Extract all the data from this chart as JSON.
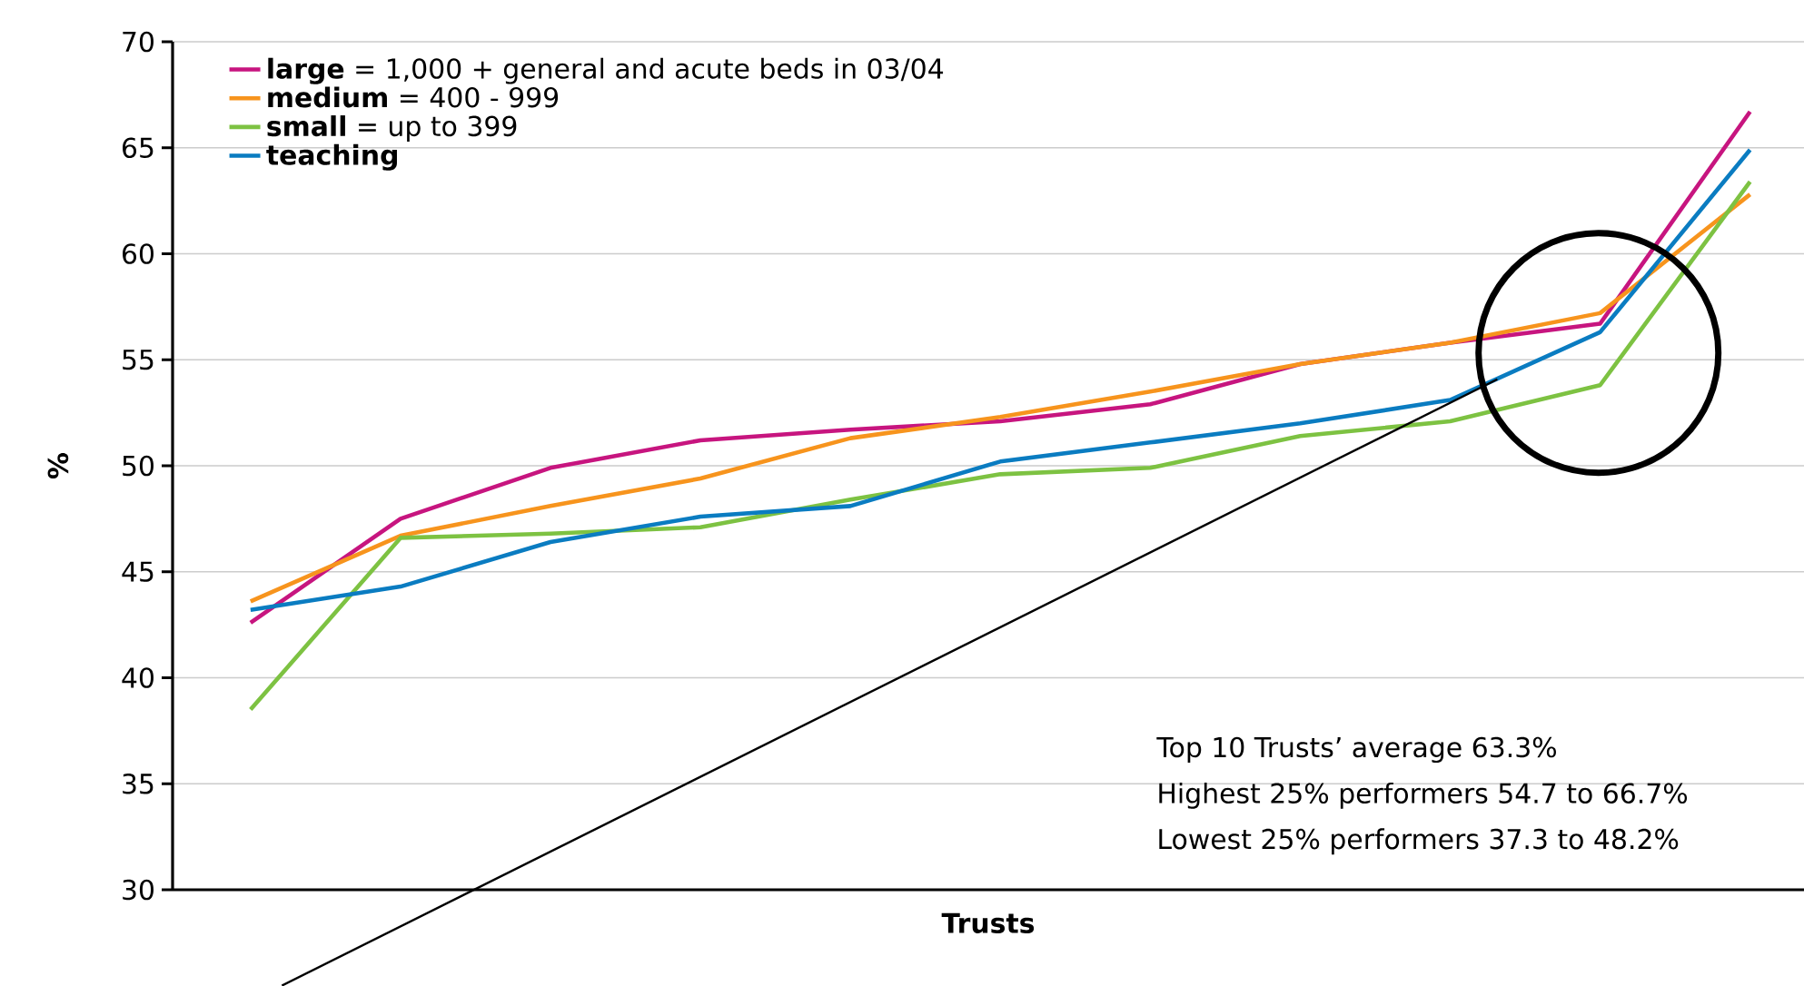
{
  "chart_data": {
    "type": "line",
    "xlabel": "Trusts",
    "ylabel": "%",
    "categories": [
      null,
      null,
      null,
      null,
      null,
      null,
      null,
      null,
      null,
      null,
      null
    ],
    "series": [
      {
        "name": "**large** = 1,000 + general and acute beds in 03/04",
        "color": "#c7157f",
        "values": [
          42.6,
          47.5,
          49.9,
          51.2,
          51.7,
          52.1,
          52.9,
          54.8,
          55.8,
          56.7,
          66.7
        ]
      },
      {
        "name": "**medium** = 400 - 999",
        "color": "#f7941d",
        "values": [
          43.6,
          46.7,
          48.1,
          49.4,
          51.3,
          52.3,
          53.5,
          54.8,
          55.8,
          57.2,
          62.8
        ]
      },
      {
        "name": "**small** = up to 399",
        "color": "#7dc242",
        "values": [
          38.5,
          46.6,
          46.8,
          47.1,
          48.4,
          49.6,
          49.9,
          51.4,
          52.1,
          53.8,
          63.4
        ]
      },
      {
        "name": "**teaching**",
        "color": "#0a7cc1",
        "values": [
          43.2,
          44.3,
          46.4,
          47.6,
          48.1,
          50.2,
          51.1,
          52.0,
          53.1,
          56.3,
          64.9
        ]
      }
    ],
    "ylim": [
      30,
      70
    ],
    "yticks": [
      30,
      35,
      40,
      45,
      50,
      55,
      60,
      65,
      70
    ],
    "grid": "y",
    "legend": "top left",
    "tick_labels": "y",
    "marker": "none",
    "line_style": "solid",
    "annotations": [
      "Top 10 Trusts’ average 63.3%",
      "Highest 25% performers 54.7 to 66.7%",
      "Lowest 25% performers 37.3 to 48.2%"
    ]
  }
}
